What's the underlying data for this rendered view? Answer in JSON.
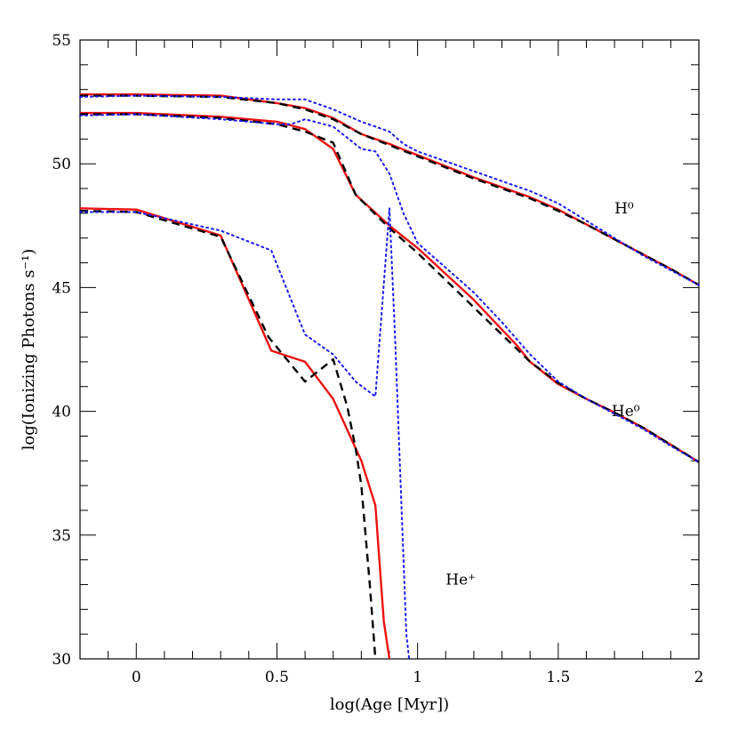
{
  "chart_data": {
    "type": "line",
    "title": "",
    "xlabel": "log(Age [Myr])",
    "ylabel": "log(Ionizing Photons s⁻¹)",
    "xlim": [
      -0.2,
      2.0
    ],
    "ylim": [
      30,
      55
    ],
    "x_ticks": [
      0,
      0.5,
      1,
      1.5,
      2
    ],
    "x_tick_labels": [
      "0",
      "0.5",
      "1",
      "1.5",
      "2"
    ],
    "y_ticks": [
      30,
      35,
      40,
      45,
      50,
      55
    ],
    "y_tick_labels": [
      "30",
      "35",
      "40",
      "45",
      "50",
      "55"
    ],
    "grid": false,
    "legend": "none",
    "colors": {
      "red": "#ee1111",
      "black": "#000000",
      "blue": "#1a1aee"
    },
    "curve_labels": [
      {
        "text": "H⁰",
        "x": 1.7,
        "y": 48.0
      },
      {
        "text": "He⁰",
        "x": 1.69,
        "y": 39.8
      },
      {
        "text": "He⁺",
        "x": 1.1,
        "y": 33.0
      }
    ],
    "series": [
      {
        "style": "solid",
        "color": "#ee1111",
        "x": [
          -0.2,
          0,
          0.3,
          0.5,
          0.6,
          0.7,
          0.8,
          0.9,
          1.0,
          1.1,
          1.2,
          1.3,
          1.4,
          1.5,
          1.6,
          1.7,
          1.8,
          1.9,
          2.0
        ],
        "y": [
          52.8,
          52.8,
          52.75,
          52.45,
          52.25,
          51.85,
          51.2,
          50.8,
          50.35,
          49.9,
          49.45,
          49.05,
          48.65,
          48.15,
          47.55,
          46.95,
          46.35,
          45.75,
          45.1
        ]
      },
      {
        "style": "dashed",
        "color": "#000000",
        "x": [
          -0.2,
          0,
          0.3,
          0.5,
          0.6,
          0.7,
          0.8,
          0.9,
          1.0,
          1.1,
          1.2,
          1.3,
          1.4,
          1.5,
          1.6,
          1.7,
          1.8,
          1.9,
          2.0
        ],
        "y": [
          52.75,
          52.75,
          52.7,
          52.45,
          52.2,
          51.8,
          51.2,
          50.75,
          50.3,
          49.85,
          49.4,
          49.0,
          48.6,
          48.1,
          47.55,
          46.95,
          46.35,
          45.75,
          45.1
        ]
      },
      {
        "style": "dotted",
        "color": "#1a1aee",
        "x": [
          -0.2,
          0,
          0.3,
          0.5,
          0.6,
          0.7,
          0.8,
          0.85,
          0.9,
          0.95,
          1.0,
          1.1,
          1.2,
          1.3,
          1.4,
          1.5,
          1.6,
          1.7,
          1.8,
          1.9,
          2.0
        ],
        "y": [
          52.7,
          52.75,
          52.7,
          52.6,
          52.6,
          52.2,
          51.7,
          51.5,
          51.3,
          50.8,
          50.5,
          50.1,
          49.7,
          49.3,
          48.9,
          48.4,
          47.7,
          47.0,
          46.3,
          45.7,
          45.1
        ]
      },
      {
        "style": "solid",
        "color": "#ee1111",
        "x": [
          -0.2,
          0,
          0.3,
          0.5,
          0.6,
          0.7,
          0.78,
          0.9,
          1.0,
          1.1,
          1.2,
          1.3,
          1.35,
          1.4,
          1.5,
          1.6,
          1.7,
          1.8,
          1.9,
          2.0
        ],
        "y": [
          52.05,
          52.05,
          51.9,
          51.7,
          51.4,
          50.6,
          48.75,
          47.5,
          46.6,
          45.55,
          44.5,
          43.3,
          42.7,
          42.0,
          41.1,
          40.5,
          39.95,
          39.35,
          38.65,
          37.95
        ]
      },
      {
        "style": "dashed",
        "color": "#000000",
        "x": [
          -0.2,
          0,
          0.3,
          0.5,
          0.6,
          0.7,
          0.78,
          0.9,
          1.0,
          1.1,
          1.2,
          1.3,
          1.4,
          1.5,
          1.6,
          1.7,
          1.8,
          1.9,
          2.0
        ],
        "y": [
          52.0,
          52.0,
          51.85,
          51.6,
          51.3,
          50.85,
          48.75,
          47.4,
          46.4,
          45.3,
          44.2,
          43.1,
          42.0,
          41.15,
          40.5,
          39.95,
          39.35,
          38.65,
          37.95
        ]
      },
      {
        "style": "dotted",
        "color": "#1a1aee",
        "x": [
          -0.2,
          0,
          0.3,
          0.5,
          0.55,
          0.6,
          0.7,
          0.8,
          0.85,
          0.9,
          0.95,
          1.0,
          1.1,
          1.2,
          1.3,
          1.4,
          1.5,
          1.6,
          1.7,
          1.8,
          1.9,
          2.0
        ],
        "y": [
          51.95,
          52.0,
          51.8,
          51.6,
          51.6,
          51.8,
          51.5,
          50.6,
          50.5,
          49.6,
          48.0,
          46.8,
          45.8,
          44.8,
          43.6,
          42.3,
          41.2,
          40.5,
          39.9,
          39.3,
          38.6,
          37.95
        ]
      },
      {
        "style": "solid",
        "color": "#ee1111",
        "x": [
          -0.2,
          0,
          0.3,
          0.48,
          0.6,
          0.7,
          0.8,
          0.85,
          0.88,
          0.9
        ],
        "y": [
          48.2,
          48.15,
          47.1,
          42.45,
          42.0,
          40.5,
          38.0,
          36.2,
          31.5,
          30
        ]
      },
      {
        "style": "dashed",
        "color": "#000000",
        "x": [
          -0.2,
          0,
          0.3,
          0.47,
          0.6,
          0.7,
          0.75,
          0.78,
          0.8,
          0.83,
          0.85
        ],
        "y": [
          48.1,
          48.05,
          47.05,
          43.0,
          41.2,
          42.1,
          40.2,
          38.5,
          37.0,
          33.0,
          30
        ]
      },
      {
        "style": "dotted",
        "color": "#1a1aee",
        "x": [
          -0.2,
          0,
          0.3,
          0.48,
          0.6,
          0.7,
          0.78,
          0.85,
          0.9,
          0.92,
          0.96,
          0.97
        ],
        "y": [
          48.05,
          48.05,
          47.3,
          46.5,
          43.1,
          42.3,
          41.2,
          40.6,
          48.2,
          43.0,
          31.0,
          30
        ]
      }
    ]
  }
}
